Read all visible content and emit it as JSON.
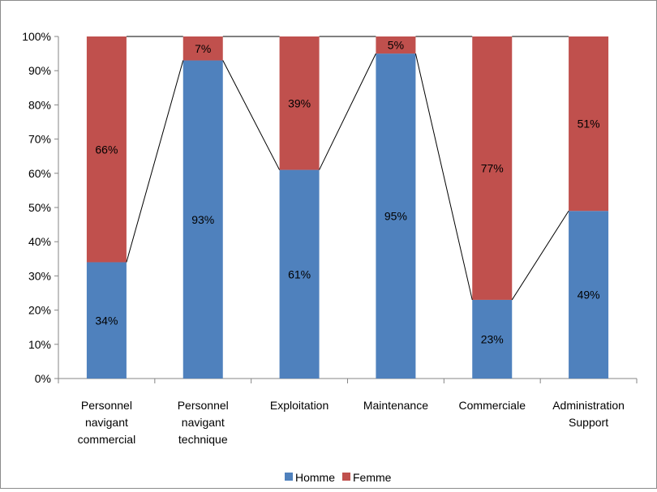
{
  "chart_data": {
    "type": "bar",
    "stacked": true,
    "percent_stacked": true,
    "categories": [
      [
        "Personnel",
        "navigant",
        "commercial"
      ],
      [
        "Personnel",
        "navigant",
        "technique"
      ],
      [
        "Exploitation"
      ],
      [
        "Maintenance"
      ],
      [
        "Commerciale"
      ],
      [
        "Administration",
        "Support"
      ]
    ],
    "series": [
      {
        "name": "Homme",
        "color": "#4f81bd",
        "values": [
          34,
          93,
          61,
          95,
          23,
          49
        ]
      },
      {
        "name": "Femme",
        "color": "#c0504d",
        "values": [
          66,
          7,
          39,
          5,
          77,
          51
        ]
      }
    ],
    "value_labels": {
      "Homme": [
        "34%",
        "93%",
        "61%",
        "95%",
        "23%",
        "49%"
      ],
      "Femme": [
        "66%",
        "7%",
        "39%",
        "5%",
        "77%",
        "51%"
      ]
    },
    "series_lines": true,
    "ylim": [
      0,
      100
    ],
    "yticks": [
      "0%",
      "10%",
      "20%",
      "30%",
      "40%",
      "50%",
      "60%",
      "70%",
      "80%",
      "90%",
      "100%"
    ],
    "grid": false,
    "legend_position": "bottom"
  }
}
